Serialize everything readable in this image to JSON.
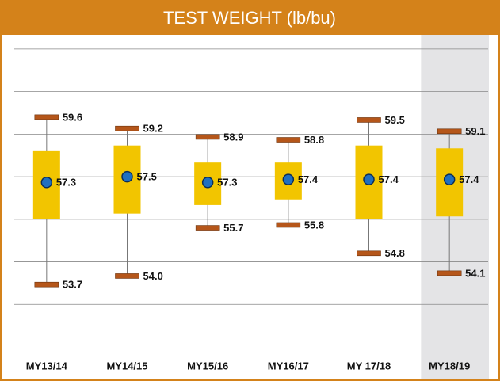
{
  "chart_data": {
    "type": "box",
    "title": "TEST WEIGHT (lb/bu)",
    "categories": [
      "MY13/14",
      "MY14/15",
      "MY15/16",
      "MY16/17",
      "MY 17/18",
      "MY18/19"
    ],
    "max": [
      59.6,
      59.2,
      58.9,
      58.8,
      59.5,
      59.1
    ],
    "max_labels": [
      "59.6",
      "59.2",
      "58.9",
      "58.8",
      "59.5",
      "59.1"
    ],
    "min": [
      53.7,
      54.0,
      55.7,
      55.8,
      54.8,
      54.1
    ],
    "min_labels": [
      "53.7",
      "54.0",
      "55.7",
      "55.8",
      "54.8",
      "54.1"
    ],
    "mean": [
      57.3,
      57.5,
      57.3,
      57.4,
      57.4,
      57.4
    ],
    "mean_labels": [
      "57.3",
      "57.5",
      "57.3",
      "57.4",
      "57.4",
      "57.4"
    ],
    "q3": [
      58.4,
      58.6,
      58.0,
      58.0,
      58.6,
      58.5
    ],
    "q1": [
      56.0,
      56.2,
      56.5,
      56.7,
      56.0,
      56.1
    ],
    "box_color": "#f2c500",
    "whisker_color": "#b5561a",
    "mean_color": "#1f6fc0",
    "highlight_index": 5,
    "ylim": [
      51.5,
      62.5
    ],
    "yticks": [
      53,
      54.5,
      56,
      57.5,
      59,
      60.5,
      62
    ],
    "grid": true
  }
}
